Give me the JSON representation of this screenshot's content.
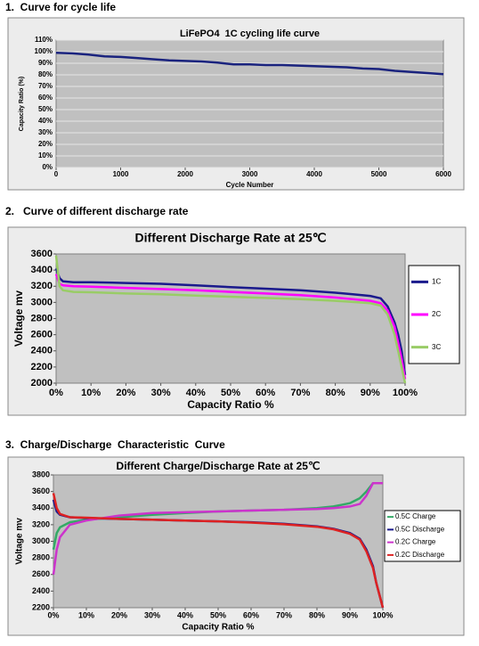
{
  "headings": [
    "1.  Curve for cycle life",
    "2.   Curve of different discharge rate",
    "3.  Charge/Discharge  Characteristic  Curve"
  ],
  "chart_data": [
    {
      "type": "line",
      "title": "LiFePO4  1C cycling life curve",
      "x_label": "Cycle Number",
      "y_label": "Capacity Ratio (%)",
      "x": [
        0,
        250,
        500,
        750,
        1000,
        1250,
        1500,
        1750,
        2000,
        2250,
        2500,
        2750,
        3000,
        3250,
        3500,
        3750,
        4000,
        4250,
        4500,
        4750,
        5000,
        5250,
        5500,
        5750,
        6000
      ],
      "values": [
        99,
        98.5,
        97.5,
        96,
        95.5,
        94.5,
        93.5,
        92.5,
        92,
        91.5,
        90.5,
        89,
        89,
        88.5,
        88.5,
        88,
        87.5,
        87,
        86.5,
        85.5,
        85,
        83.5,
        82.5,
        81.5,
        80.5
      ],
      "color": "#1a237e",
      "xlim": [
        0,
        6000
      ],
      "ylim": [
        0,
        110
      ],
      "xticks": [
        0,
        1000,
        2000,
        3000,
        4000,
        5000,
        6000
      ],
      "yticks": [
        {
          "value": 0,
          "label": "0%"
        },
        {
          "value": 10,
          "label": "10%"
        },
        {
          "value": 20,
          "label": "20%"
        },
        {
          "value": 30,
          "label": "30%"
        },
        {
          "value": 40,
          "label": "40%"
        },
        {
          "value": 50,
          "label": "50%"
        },
        {
          "value": 60,
          "label": "60%"
        },
        {
          "value": 70,
          "label": "70%"
        },
        {
          "value": 80,
          "label": "80%"
        },
        {
          "value": 90,
          "label": "90%"
        },
        {
          "value": 100,
          "label": "100%"
        },
        {
          "value": 110,
          "label": "110%"
        }
      ],
      "grid": true
    },
    {
      "type": "line",
      "title": "Different Discharge Rate at 25℃",
      "x_label": "Capacity Ratio %",
      "y_label": "Voltage mv",
      "x": [
        0,
        1,
        2,
        5,
        10,
        20,
        30,
        40,
        50,
        60,
        70,
        80,
        85,
        90,
        93,
        95,
        97,
        98,
        99,
        100
      ],
      "series": [
        {
          "name": "1C",
          "color": "#1a1a8c",
          "values": [
            3420,
            3300,
            3260,
            3250,
            3250,
            3240,
            3230,
            3210,
            3190,
            3170,
            3150,
            3120,
            3100,
            3080,
            3050,
            2950,
            2750,
            2600,
            2400,
            2100
          ]
        },
        {
          "name": "2C",
          "color": "#ff00ff",
          "values": [
            3350,
            3230,
            3210,
            3200,
            3195,
            3180,
            3165,
            3150,
            3130,
            3110,
            3090,
            3060,
            3040,
            3020,
            2990,
            2900,
            2700,
            2500,
            2300,
            2050
          ]
        },
        {
          "name": "3C",
          "color": "#99cc66",
          "values": [
            3580,
            3200,
            3150,
            3130,
            3125,
            3110,
            3100,
            3085,
            3070,
            3055,
            3040,
            3020,
            3005,
            2990,
            2960,
            2850,
            2600,
            2400,
            2200,
            2000
          ]
        }
      ],
      "xlim": [
        0,
        100
      ],
      "ylim": [
        2000,
        3600
      ],
      "xticks": [
        {
          "value": 0,
          "label": "0%"
        },
        {
          "value": 10,
          "label": "10%"
        },
        {
          "value": 20,
          "label": "20%"
        },
        {
          "value": 30,
          "label": "30%"
        },
        {
          "value": 40,
          "label": "40%"
        },
        {
          "value": 50,
          "label": "50%"
        },
        {
          "value": 60,
          "label": "60%"
        },
        {
          "value": 70,
          "label": "70%"
        },
        {
          "value": 80,
          "label": "80%"
        },
        {
          "value": 90,
          "label": "90%"
        },
        {
          "value": 100,
          "label": "100%"
        }
      ],
      "yticks": [
        2000,
        2200,
        2400,
        2600,
        2800,
        3000,
        3200,
        3400,
        3600
      ],
      "grid": false,
      "legend": "right"
    },
    {
      "type": "line",
      "title": "Different Charge/Discharge Rate at 25℃",
      "x_label": "Capacity Ratio %",
      "y_label": "Voltage mv",
      "x": [
        0,
        1,
        2,
        5,
        10,
        20,
        30,
        40,
        50,
        60,
        70,
        80,
        85,
        90,
        93,
        95,
        97,
        98,
        99,
        100
      ],
      "series": [
        {
          "name": "0.5C Charge",
          "color": "#33aa66",
          "values": [
            2900,
            3100,
            3170,
            3230,
            3260,
            3290,
            3320,
            3340,
            3360,
            3370,
            3380,
            3400,
            3420,
            3460,
            3520,
            3600,
            3700,
            3700,
            null,
            null
          ]
        },
        {
          "name": "0.5C Discharge",
          "color": "#1a1a8c",
          "values": [
            3500,
            3360,
            3320,
            3290,
            3280,
            3270,
            3260,
            3250,
            3240,
            3230,
            3210,
            3180,
            3150,
            3100,
            3030,
            2900,
            2700,
            2500,
            2350,
            2200
          ]
        },
        {
          "name": "0.2C Charge",
          "color": "#cc33cc",
          "values": [
            2600,
            2900,
            3050,
            3200,
            3250,
            3310,
            3340,
            3350,
            3360,
            3370,
            3380,
            3390,
            3400,
            3420,
            3450,
            3550,
            3700,
            3700,
            3700,
            3700
          ]
        },
        {
          "name": "0.2C Discharge",
          "color": "#dd2222",
          "values": [
            3580,
            3400,
            3330,
            3290,
            3285,
            3270,
            3260,
            3250,
            3240,
            3225,
            3205,
            3175,
            3145,
            3090,
            3020,
            2880,
            2680,
            2500,
            2350,
            2200
          ]
        }
      ],
      "xlim": [
        0,
        100
      ],
      "ylim": [
        2200,
        3800
      ],
      "xticks": [
        {
          "value": 0,
          "label": "0%"
        },
        {
          "value": 10,
          "label": "10%"
        },
        {
          "value": 20,
          "label": "20%"
        },
        {
          "value": 30,
          "label": "30%"
        },
        {
          "value": 40,
          "label": "40%"
        },
        {
          "value": 50,
          "label": "50%"
        },
        {
          "value": 60,
          "label": "60%"
        },
        {
          "value": 70,
          "label": "70%"
        },
        {
          "value": 80,
          "label": "80%"
        },
        {
          "value": 90,
          "label": "90%"
        },
        {
          "value": 100,
          "label": "100%"
        }
      ],
      "yticks": [
        2200,
        2400,
        2600,
        2800,
        3000,
        3200,
        3400,
        3600,
        3800
      ],
      "grid": false,
      "legend": "right"
    }
  ]
}
